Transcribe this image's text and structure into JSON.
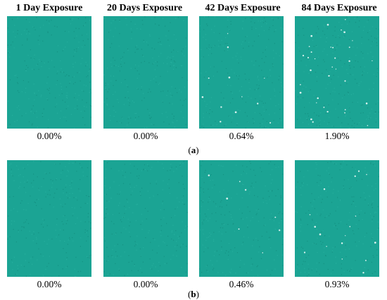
{
  "figure": {
    "column_headers": [
      "1 Day Exposure",
      "20 Days Exposure",
      "42 Days Exposure",
      "84 Days Exposure"
    ],
    "colors": {
      "sample_fill": "#1ba494",
      "sample_dark": "#148a7c",
      "spot": "#d8f2ee"
    },
    "row_a": {
      "label_open": "(",
      "label_letter": "a",
      "label_close": ")",
      "values": [
        "0.00%",
        "0.00%",
        "0.64%",
        "1.90%"
      ],
      "spot_fraction": [
        0.0,
        0.0,
        0.0064,
        0.019
      ]
    },
    "row_b": {
      "label_open": "(",
      "label_letter": "b",
      "label_close": ")",
      "values": [
        "0.00%",
        "0.00%",
        "0.46%",
        "0.93%"
      ],
      "spot_fraction": [
        0.0,
        0.0,
        0.0046,
        0.0093
      ]
    }
  }
}
